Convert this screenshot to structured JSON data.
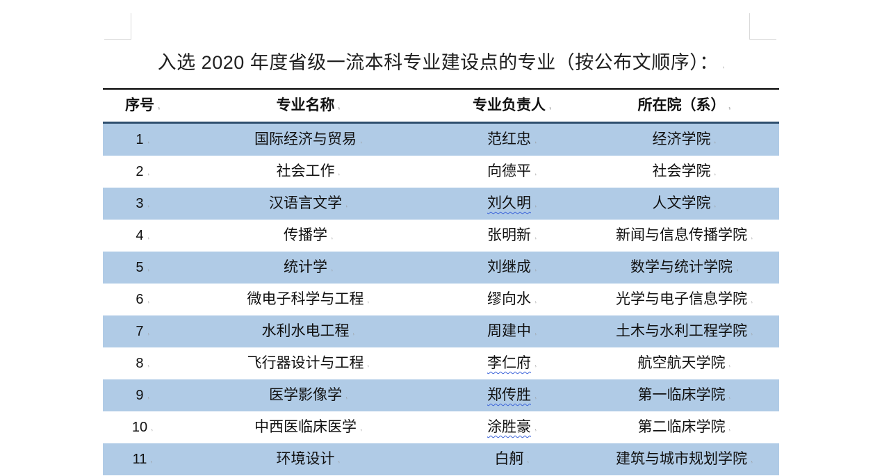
{
  "page": {
    "title": "入选 2020 年度省级一流本科专业建设点的专业（按公布文顺序）："
  },
  "table": {
    "headers": [
      "序号",
      "专业名称",
      "专业负责人",
      "所在院（系）"
    ],
    "rows": [
      {
        "no": "1",
        "major": "国际经济与贸易",
        "leader": "范红忠",
        "college": "经济学院",
        "wavy": false
      },
      {
        "no": "2",
        "major": "社会工作",
        "leader": "向德平",
        "college": "社会学院",
        "wavy": false
      },
      {
        "no": "3",
        "major": "汉语言文学",
        "leader": "刘久明",
        "college": "人文学院",
        "wavy": true
      },
      {
        "no": "4",
        "major": "传播学",
        "leader": "张明新",
        "college": "新闻与信息传播学院",
        "wavy": false
      },
      {
        "no": "5",
        "major": "统计学",
        "leader": "刘继成",
        "college": "数学与统计学院",
        "wavy": false
      },
      {
        "no": "6",
        "major": "微电子科学与工程",
        "leader": "缪向水",
        "college": "光学与电子信息学院",
        "wavy": false
      },
      {
        "no": "7",
        "major": "水利水电工程",
        "leader": "周建中",
        "college": "土木与水利工程学院",
        "wavy": false
      },
      {
        "no": "8",
        "major": "飞行器设计与工程",
        "leader": "李仁府",
        "college": "航空航天学院",
        "wavy": true
      },
      {
        "no": "9",
        "major": "医学影像学",
        "leader": "郑传胜",
        "college": "第一临床学院",
        "wavy": true
      },
      {
        "no": "10",
        "major": "中西医临床医学",
        "leader": "涂胜豪",
        "college": "第二临床学院",
        "wavy": true
      },
      {
        "no": "11",
        "major": "环境设计",
        "leader": "白舸",
        "college": "建筑与城市规划学院",
        "wavy": false
      }
    ]
  },
  "colors": {
    "row_highlight": "#B0CBE6",
    "header_rule": "#2E4E6E",
    "wavy_underline": "#3B63D9",
    "table_top_border": "#000000"
  }
}
